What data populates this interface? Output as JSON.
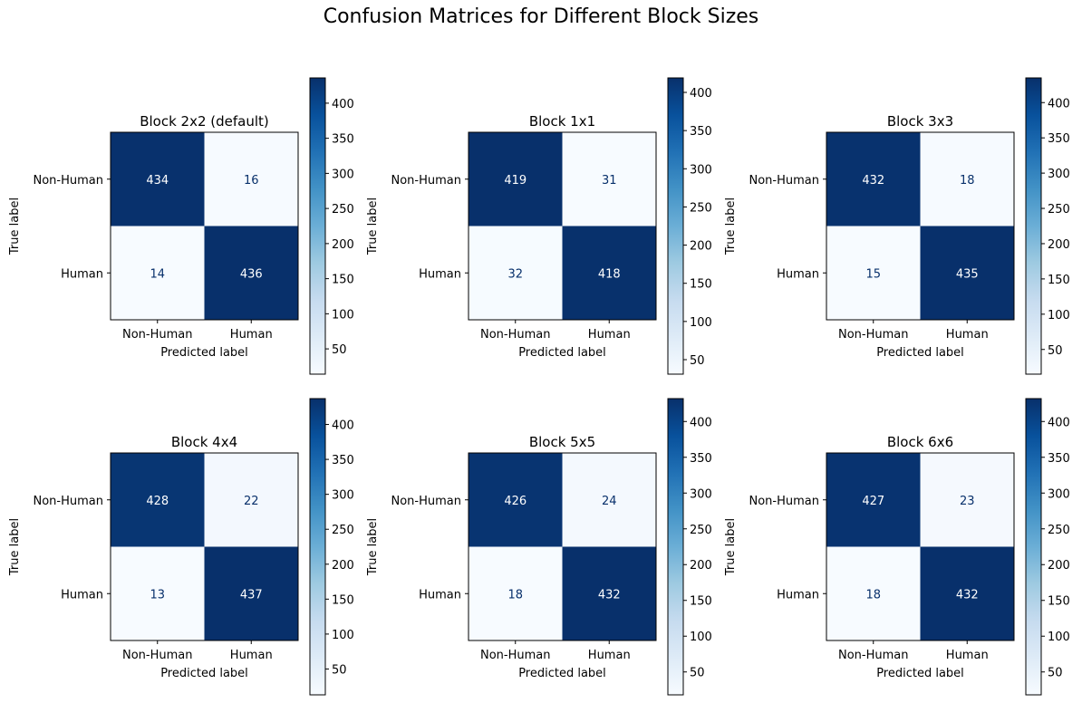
{
  "figure": {
    "title": "Confusion Matrices for Different Block Sizes"
  },
  "chart_data": [
    {
      "type": "heatmap",
      "title": "Block 2x2 (default)",
      "xlabel": "Predicted label",
      "ylabel": "True label",
      "x_categories": [
        "Non-Human",
        "Human"
      ],
      "y_categories": [
        "Non-Human",
        "Human"
      ],
      "matrix": [
        [
          434,
          16
        ],
        [
          14,
          436
        ]
      ],
      "colormap": "Blues",
      "colorbar": {
        "min": 14,
        "max": 436,
        "ticks": [
          50,
          100,
          150,
          200,
          250,
          300,
          350,
          400
        ]
      }
    },
    {
      "type": "heatmap",
      "title": "Block 1x1",
      "xlabel": "Predicted label",
      "ylabel": "True label",
      "x_categories": [
        "Non-Human",
        "Human"
      ],
      "y_categories": [
        "Non-Human",
        "Human"
      ],
      "matrix": [
        [
          419,
          31
        ],
        [
          32,
          418
        ]
      ],
      "colormap": "Blues",
      "colorbar": {
        "min": 31,
        "max": 419,
        "ticks": [
          50,
          100,
          150,
          200,
          250,
          300,
          350,
          400
        ]
      }
    },
    {
      "type": "heatmap",
      "title": "Block 3x3",
      "xlabel": "Predicted label",
      "ylabel": "True label",
      "x_categories": [
        "Non-Human",
        "Human"
      ],
      "y_categories": [
        "Non-Human",
        "Human"
      ],
      "matrix": [
        [
          432,
          18
        ],
        [
          15,
          435
        ]
      ],
      "colormap": "Blues",
      "colorbar": {
        "min": 15,
        "max": 435,
        "ticks": [
          50,
          100,
          150,
          200,
          250,
          300,
          350,
          400
        ]
      }
    },
    {
      "type": "heatmap",
      "title": "Block 4x4",
      "xlabel": "Predicted label",
      "ylabel": "True label",
      "x_categories": [
        "Non-Human",
        "Human"
      ],
      "y_categories": [
        "Non-Human",
        "Human"
      ],
      "matrix": [
        [
          428,
          22
        ],
        [
          13,
          437
        ]
      ],
      "colormap": "Blues",
      "colorbar": {
        "min": 13,
        "max": 437,
        "ticks": [
          50,
          100,
          150,
          200,
          250,
          300,
          350,
          400
        ]
      }
    },
    {
      "type": "heatmap",
      "title": "Block 5x5",
      "xlabel": "Predicted label",
      "ylabel": "True label",
      "x_categories": [
        "Non-Human",
        "Human"
      ],
      "y_categories": [
        "Non-Human",
        "Human"
      ],
      "matrix": [
        [
          426,
          24
        ],
        [
          18,
          432
        ]
      ],
      "colormap": "Blues",
      "colorbar": {
        "min": 18,
        "max": 432,
        "ticks": [
          50,
          100,
          150,
          200,
          250,
          300,
          350,
          400
        ]
      }
    },
    {
      "type": "heatmap",
      "title": "Block 6x6",
      "xlabel": "Predicted label",
      "ylabel": "True label",
      "x_categories": [
        "Non-Human",
        "Human"
      ],
      "y_categories": [
        "Non-Human",
        "Human"
      ],
      "matrix": [
        [
          427,
          23
        ],
        [
          18,
          432
        ]
      ],
      "colormap": "Blues",
      "colorbar": {
        "min": 18,
        "max": 432,
        "ticks": [
          50,
          100,
          150,
          200,
          250,
          300,
          350,
          400
        ]
      }
    }
  ],
  "colors": {
    "low": "#f7fbff",
    "high": "#08306b",
    "text_dark_cell": "#ffffff",
    "text_light_cell": "#08306b"
  }
}
